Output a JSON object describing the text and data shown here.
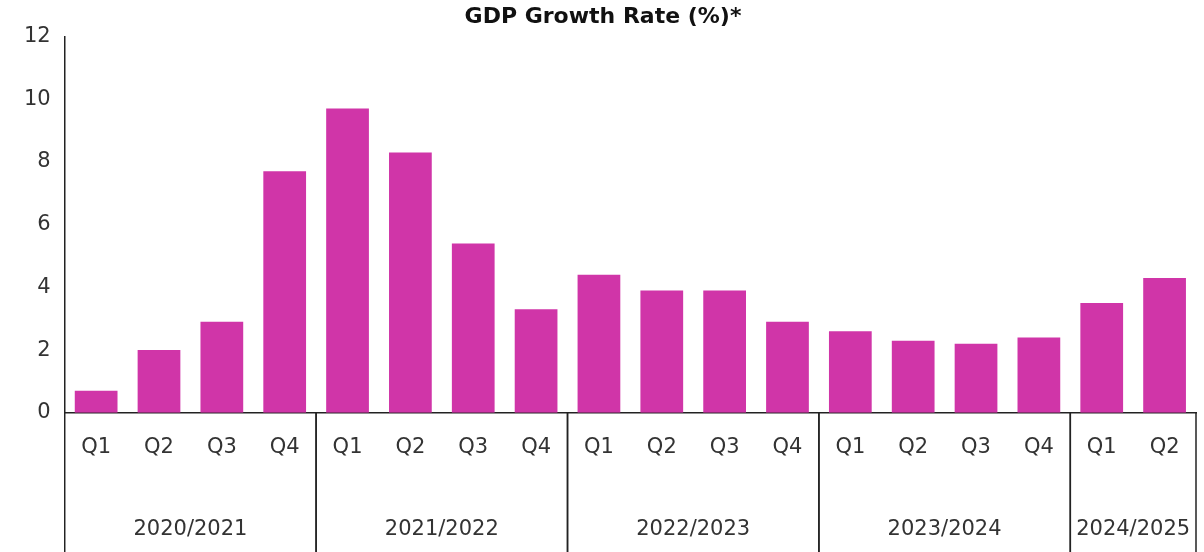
{
  "chart_data": {
    "type": "bar",
    "title": "GDP Growth Rate (%)*",
    "categories": [
      "Q1",
      "Q2",
      "Q3",
      "Q4",
      "Q1",
      "Q2",
      "Q3",
      "Q4",
      "Q1",
      "Q2",
      "Q3",
      "Q4",
      "Q1",
      "Q2",
      "Q3",
      "Q4",
      "Q1",
      "Q2"
    ],
    "values": [
      0.7,
      2.0,
      2.9,
      7.7,
      9.7,
      8.3,
      5.4,
      3.3,
      4.4,
      3.9,
      3.9,
      2.9,
      2.6,
      2.3,
      2.2,
      2.4,
      3.5,
      4.3
    ],
    "color": "#d035a8",
    "ylim": [
      0,
      12
    ],
    "yticks": [
      0,
      2,
      4,
      6,
      8,
      10,
      12
    ],
    "grid": false,
    "legend": false,
    "annotations": [
      "2020/2021",
      "2021/2022",
      "2022/2023",
      "2023/2024",
      "2024/2025"
    ]
  }
}
